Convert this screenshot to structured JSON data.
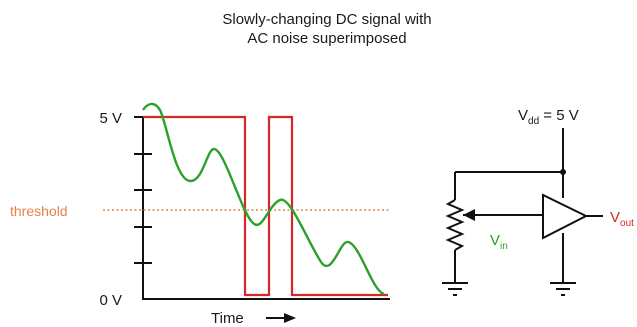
{
  "title": {
    "line1": "Slowly-changing DC signal with",
    "line2": "AC noise superimposed"
  },
  "graph": {
    "y_top_label": "5 V",
    "y_bottom_label": "0 V",
    "threshold_label": "threshold",
    "x_axis_label": "Time",
    "x_axis_icon": "right-arrow-icon"
  },
  "circuit": {
    "vdd_label": "V",
    "vdd_subscript": "dd",
    "vdd_value": " = 5 V",
    "vin_label": "V",
    "vin_subscript": "in",
    "vout_label": "V",
    "vout_subscript": "out",
    "components": [
      "potentiometer-icon",
      "comparator-icon",
      "ground-icon"
    ]
  },
  "colors": {
    "signal": "#2ca02c",
    "digital": "#d62728",
    "threshold": "#e8804a",
    "wire": "#111111"
  }
}
